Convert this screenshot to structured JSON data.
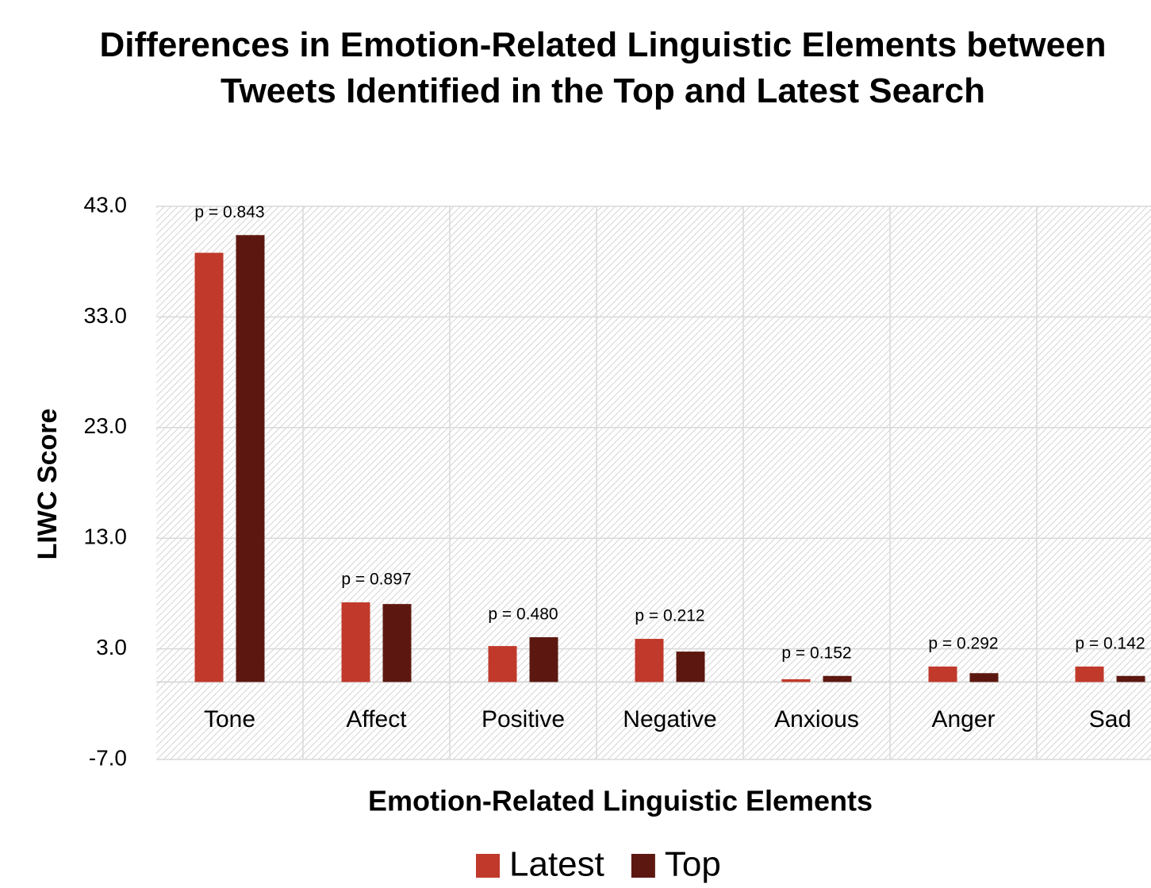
{
  "chart_data": {
    "type": "bar",
    "title": "Differences in Emotion-Related Linguistic Elements between Tweets Identified in the Top and Latest Search",
    "x_label": "Emotion-Related Linguistic Elements",
    "y_label": "LIWC Score",
    "categories": [
      "Tone",
      "Affect",
      "Positive",
      "Negative",
      "Anxious",
      "Anger",
      "Sad"
    ],
    "series": [
      {
        "name": "Latest",
        "color": "#c0392b",
        "values": [
          38.8,
          7.2,
          3.25,
          3.9,
          0.25,
          1.4,
          1.4
        ]
      },
      {
        "name": "Top",
        "color": "#5c1810",
        "values": [
          40.4,
          7.05,
          4.05,
          2.75,
          0.55,
          0.8,
          0.55
        ]
      }
    ],
    "annotations": [
      "p = 0.843",
      "p = 0.897",
      "p = 0.480",
      "p = 0.212",
      "p = 0.152",
      "p = 0.292",
      "p = 0.142"
    ],
    "ylim": [
      -7,
      43
    ],
    "yticks": [
      {
        "value": -7,
        "label": "-7.0"
      },
      {
        "value": 3,
        "label": "3.0"
      },
      {
        "value": 13,
        "label": "13.0"
      },
      {
        "value": 23,
        "label": "23.0"
      },
      {
        "value": 33,
        "label": "33.0"
      },
      {
        "value": 43,
        "label": "43.0"
      }
    ],
    "grid": true,
    "legend": "bottom"
  }
}
